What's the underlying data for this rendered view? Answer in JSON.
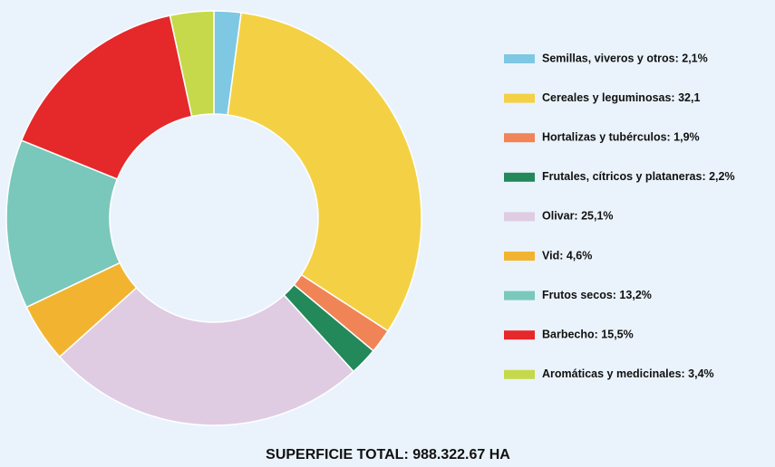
{
  "chart_data": {
    "type": "donut",
    "title": "SUPERFICIE TOTAL: 988.322.67 HA",
    "categories": [
      "Semillas, viveros y otros: 2,1%",
      "Cereales y leguminosas: 32,1",
      "Hortalizas y tubérculos: 1,9%",
      "Frutales, cítricos y plataneras: 2,2%",
      "Olivar: 25,1%",
      "Vid: 4,6%",
      "Frutos secos: 13,2%",
      "Barbecho: 15,5%",
      "Aromáticas y medicinales: 3,4%"
    ],
    "values": [
      2.1,
      32.1,
      1.9,
      2.2,
      25.1,
      4.6,
      13.2,
      15.5,
      3.4
    ],
    "colors": [
      "#7ec8e3",
      "#f4d144",
      "#f08457",
      "#23885a",
      "#dfcce3",
      "#f2b430",
      "#79c8bb",
      "#e5282a",
      "#c5d94a"
    ],
    "legend": "right"
  }
}
